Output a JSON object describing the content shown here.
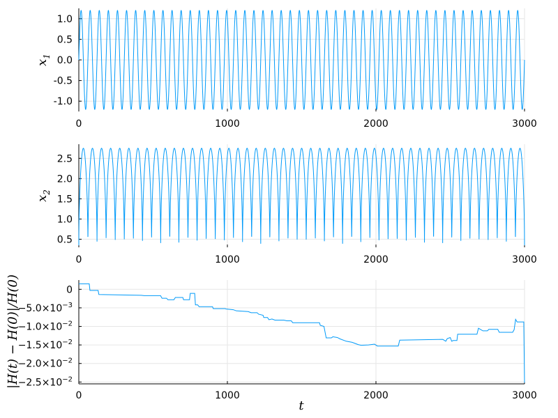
{
  "colors": {
    "series": "#009af9",
    "axis": "#000000",
    "grid": "#e6e6e6"
  },
  "chart_data": [
    {
      "type": "line",
      "name": "x1",
      "ylabel": "x1",
      "ylabel_main": "x",
      "ylabel_sub": "1",
      "xlabel": "",
      "xlim": [
        0,
        3000
      ],
      "ylim": [
        -1.25,
        1.25
      ],
      "xticks": [
        0,
        1000,
        2000,
        3000
      ],
      "xtick_labels": [
        "0",
        "1000",
        "2000",
        "3000"
      ],
      "yticks": [
        1.0,
        0.5,
        0.0,
        -0.5,
        -1.0
      ],
      "ytick_labels": [
        "1.0",
        "0.5",
        "0.0",
        "-0.5",
        "-1.0"
      ],
      "grid": true,
      "signal": {
        "kind": "oscillation",
        "periods": 49,
        "min": -1.2,
        "max": 1.2,
        "t_end": 3000
      }
    },
    {
      "type": "line",
      "name": "x2",
      "ylabel": "x2",
      "ylabel_main": "x",
      "ylabel_sub": "2",
      "xlabel": "",
      "xlim": [
        0,
        3000
      ],
      "ylim": [
        0.3,
        2.85
      ],
      "xticks": [
        0,
        1000,
        2000,
        3000
      ],
      "xtick_labels": [
        "0",
        "1000",
        "2000",
        "3000"
      ],
      "yticks": [
        2.5,
        2.0,
        1.5,
        1.0,
        0.5
      ],
      "ytick_labels": [
        "2.5",
        "2.0",
        "1.5",
        "1.0",
        "0.5"
      ],
      "grid": true,
      "signal": {
        "kind": "arcs",
        "periods": 49,
        "min": 0.35,
        "max": 2.75,
        "t_end": 3000
      }
    },
    {
      "type": "line",
      "name": "relative energy error",
      "ylabel": "|H(t) − H(0)|/H(0)",
      "xlabel": "t",
      "xlim": [
        0,
        3000
      ],
      "ylim": [
        -0.0255,
        0.0025
      ],
      "xticks": [
        0,
        1000,
        2000,
        3000
      ],
      "xtick_labels": [
        "0",
        "1000",
        "2000",
        "3000"
      ],
      "yticks": [
        0,
        -0.005,
        -0.01,
        -0.015,
        -0.02,
        -0.025
      ],
      "ytick_labels": [
        {
          "base": "0",
          "exp": ""
        },
        {
          "base": "−5.0×10",
          "exp": "−3"
        },
        {
          "base": "−1.0×10",
          "exp": "−2"
        },
        {
          "base": "−1.5×10",
          "exp": "−2"
        },
        {
          "base": "−2.0×10",
          "exp": "−2"
        },
        {
          "base": "−2.5×10",
          "exp": "−2"
        }
      ],
      "grid": true,
      "points": [
        [
          0,
          0.0015
        ],
        [
          70,
          0.0015
        ],
        [
          75,
          -0.0003
        ],
        [
          130,
          -0.0003
        ],
        [
          135,
          -0.0014
        ],
        [
          420,
          -0.0016
        ],
        [
          440,
          -0.0017
        ],
        [
          550,
          -0.0017
        ],
        [
          560,
          -0.0024
        ],
        [
          590,
          -0.0024
        ],
        [
          600,
          -0.0028
        ],
        [
          640,
          -0.0028
        ],
        [
          650,
          -0.0022
        ],
        [
          700,
          -0.0022
        ],
        [
          705,
          -0.0028
        ],
        [
          745,
          -0.0028
        ],
        [
          750,
          -0.0011
        ],
        [
          780,
          -0.0011
        ],
        [
          785,
          -0.0042
        ],
        [
          800,
          -0.0042
        ],
        [
          810,
          -0.0047
        ],
        [
          900,
          -0.0047
        ],
        [
          905,
          -0.0052
        ],
        [
          985,
          -0.0052
        ],
        [
          990,
          -0.0053
        ],
        [
          1040,
          -0.0055
        ],
        [
          1060,
          -0.0058
        ],
        [
          1140,
          -0.006
        ],
        [
          1160,
          -0.0063
        ],
        [
          1200,
          -0.0063
        ],
        [
          1210,
          -0.0067
        ],
        [
          1240,
          -0.007
        ],
        [
          1245,
          -0.0076
        ],
        [
          1270,
          -0.0076
        ],
        [
          1280,
          -0.0082
        ],
        [
          1300,
          -0.008
        ],
        [
          1320,
          -0.0083
        ],
        [
          1380,
          -0.0083
        ],
        [
          1400,
          -0.0085
        ],
        [
          1430,
          -0.0085
        ],
        [
          1440,
          -0.009
        ],
        [
          1620,
          -0.009
        ],
        [
          1625,
          -0.0097
        ],
        [
          1650,
          -0.01
        ],
        [
          1665,
          -0.0131
        ],
        [
          1700,
          -0.0131
        ],
        [
          1710,
          -0.0128
        ],
        [
          1740,
          -0.013
        ],
        [
          1760,
          -0.0134
        ],
        [
          1800,
          -0.014
        ],
        [
          1840,
          -0.0143
        ],
        [
          1880,
          -0.0149
        ],
        [
          1900,
          -0.0151
        ],
        [
          1950,
          -0.015
        ],
        [
          1990,
          -0.0148
        ],
        [
          2010,
          -0.0153
        ],
        [
          2150,
          -0.0153
        ],
        [
          2160,
          -0.0137
        ],
        [
          2450,
          -0.0135
        ],
        [
          2470,
          -0.014
        ],
        [
          2480,
          -0.0133
        ],
        [
          2500,
          -0.013
        ],
        [
          2510,
          -0.014
        ],
        [
          2520,
          -0.0138
        ],
        [
          2545,
          -0.0138
        ],
        [
          2550,
          -0.0121
        ],
        [
          2680,
          -0.0121
        ],
        [
          2690,
          -0.0105
        ],
        [
          2720,
          -0.0112
        ],
        [
          2750,
          -0.0112
        ],
        [
          2760,
          -0.0108
        ],
        [
          2820,
          -0.0108
        ],
        [
          2830,
          -0.0116
        ],
        [
          2920,
          -0.0116
        ],
        [
          2930,
          -0.0109
        ],
        [
          2940,
          -0.0081
        ],
        [
          2950,
          -0.0088
        ],
        [
          2995,
          -0.0088
        ],
        [
          3000,
          -0.0252
        ]
      ]
    }
  ]
}
